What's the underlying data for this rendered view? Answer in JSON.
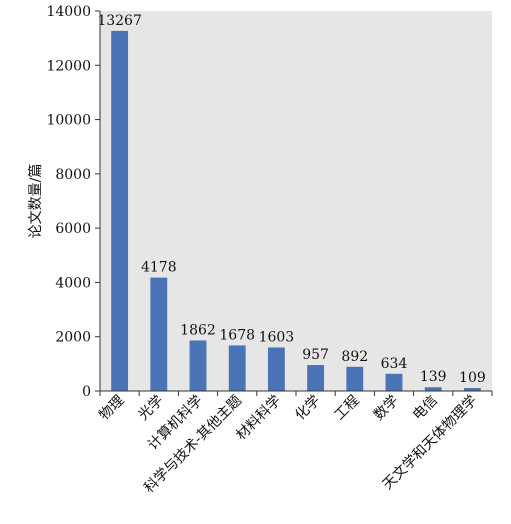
{
  "chart_data": {
    "type": "bar",
    "title": "",
    "xlabel": "",
    "ylabel": "论文数量/篇",
    "ylim": [
      0,
      14000
    ],
    "yticks": [
      0,
      2000,
      4000,
      6000,
      8000,
      10000,
      12000,
      14000
    ],
    "categories": [
      "物理",
      "光学",
      "计算机科学",
      "科学与技术-其他主题",
      "材料科学",
      "化学",
      "工程",
      "数学",
      "电信",
      "天文学和天体物理学"
    ],
    "values": [
      13267,
      4178,
      1862,
      1678,
      1603,
      957,
      892,
      634,
      139,
      109
    ],
    "data_labels": [
      "13267",
      "4178",
      "1862",
      "1678",
      "1603",
      "957",
      "892",
      "634",
      "139",
      "109"
    ],
    "grid": false,
    "plot_background": "#e6e6e6",
    "bar_color": "#4a74b5",
    "legend": "none"
  }
}
